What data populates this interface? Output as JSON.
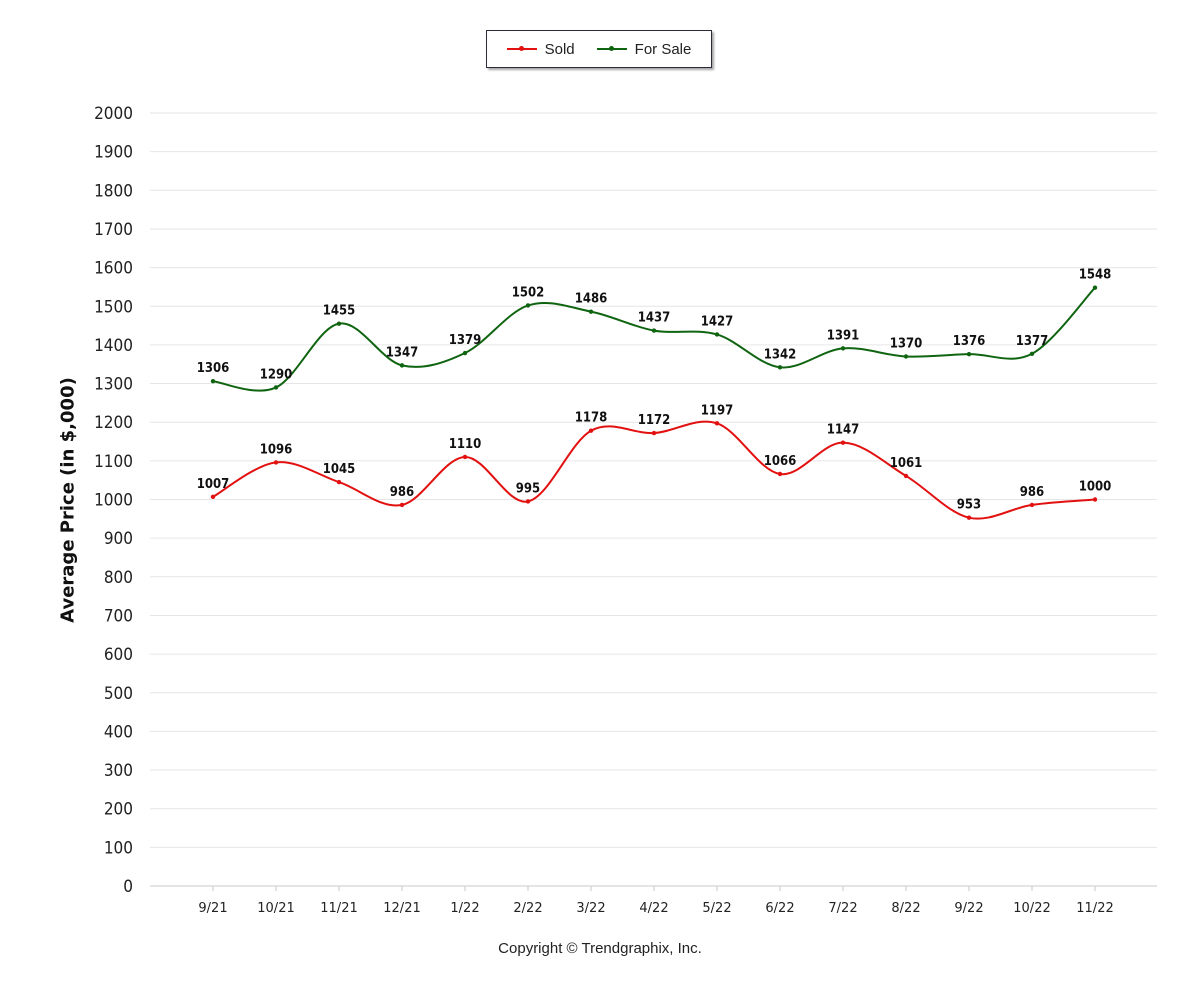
{
  "legend": {
    "items": [
      {
        "label": "Sold",
        "color": "#e31010"
      },
      {
        "label": "For Sale",
        "color": "#0f6410"
      }
    ]
  },
  "copyright": "Copyright © Trendgraphix, Inc.",
  "chart_data": {
    "type": "line",
    "ylabel": "Average Price (in $,000)",
    "xlabel": "",
    "categories": [
      "9/21",
      "10/21",
      "11/21",
      "12/21",
      "1/22",
      "2/22",
      "3/22",
      "4/22",
      "5/22",
      "6/22",
      "7/22",
      "8/22",
      "9/22",
      "10/22",
      "11/22"
    ],
    "ylim": [
      0,
      2000
    ],
    "yticks": [
      0,
      100,
      200,
      300,
      400,
      500,
      600,
      700,
      800,
      900,
      1000,
      1100,
      1200,
      1300,
      1400,
      1500,
      1600,
      1700,
      1800,
      1900,
      2000
    ],
    "grid": true,
    "legend_position": "top-center",
    "series": [
      {
        "name": "Sold",
        "color": "#e31010",
        "values": [
          1007,
          1096,
          1045,
          986,
          1110,
          995,
          1178,
          1172,
          1197,
          1066,
          1147,
          1061,
          953,
          986,
          1000
        ]
      },
      {
        "name": "For Sale",
        "color": "#0f6410",
        "values": [
          1306,
          1290,
          1455,
          1347,
          1379,
          1502,
          1486,
          1437,
          1427,
          1342,
          1391,
          1370,
          1376,
          1377,
          1548
        ]
      }
    ]
  }
}
